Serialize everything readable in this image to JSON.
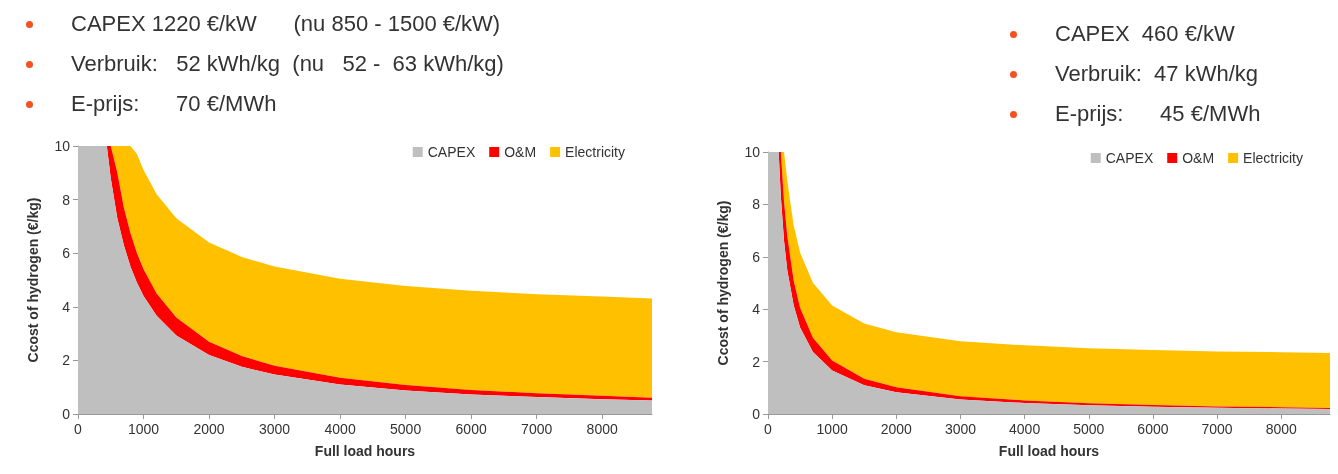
{
  "chart_data": [
    {
      "type": "area",
      "stacked": true,
      "annotations": [
        "CAPEX 1220 €/kW      (nu 850 - 1500 €/kW)",
        "Verbruik:   52 kWh/kg  (nu   52 -  63 kWh/kg)",
        "E-prijs:      70 €/MWh"
      ],
      "xlabel": "Full load hours",
      "ylabel": "Ccost of hydrogen (€/kg)",
      "xlim": [
        0,
        8760
      ],
      "xticks": [
        0,
        1000,
        2000,
        3000,
        4000,
        5000,
        6000,
        7000,
        8000
      ],
      "ylim": [
        0,
        10
      ],
      "yticks": [
        0,
        2,
        4,
        6,
        8,
        10
      ],
      "legend": "top right",
      "x": [
        0,
        440,
        500,
        600,
        700,
        800,
        900,
        1000,
        1200,
        1500,
        2000,
        2500,
        3000,
        4000,
        5000,
        6000,
        7000,
        8000,
        8760
      ],
      "series": [
        {
          "name": "CAPEX",
          "color": "#bfbfbf",
          "values": [
            10,
            10,
            8.8,
            7.3,
            6.3,
            5.5,
            4.9,
            4.4,
            3.67,
            2.93,
            2.2,
            1.76,
            1.47,
            1.1,
            0.88,
            0.73,
            0.63,
            0.55,
            0.5
          ]
        },
        {
          "name": "O&M",
          "color": "#ff0000",
          "values": [
            0,
            0,
            1.2,
            1.7,
            1.4,
            1.25,
            1.1,
            1.0,
            0.83,
            0.67,
            0.5,
            0.4,
            0.33,
            0.25,
            0.2,
            0.17,
            0.14,
            0.13,
            0.11
          ]
        },
        {
          "name": "Electricity",
          "color": "#ffc000",
          "values": [
            0,
            0,
            0,
            1.0,
            2.3,
            3.25,
            3.7,
            3.7,
            3.7,
            3.7,
            3.7,
            3.7,
            3.7,
            3.7,
            3.7,
            3.7,
            3.7,
            3.7,
            3.7
          ]
        }
      ]
    },
    {
      "type": "area",
      "stacked": true,
      "annotations": [
        "CAPEX  460 €/kW",
        "Verbruik:  47 kWh/kg",
        "E-prijs:      45 €/MWh"
      ],
      "xlabel": "Full load hours",
      "ylabel": "Ccost of hydrogen (€/kg)",
      "xlim": [
        0,
        8760
      ],
      "xticks": [
        0,
        1000,
        2000,
        3000,
        4000,
        5000,
        6000,
        7000,
        8000
      ],
      "ylim": [
        0,
        10
      ],
      "yticks": [
        0,
        2,
        4,
        6,
        8,
        10
      ],
      "legend": "top right",
      "x": [
        0,
        166,
        200,
        250,
        300,
        400,
        500,
        700,
        1000,
        1500,
        2000,
        3000,
        4000,
        5000,
        6000,
        7000,
        8000,
        8760
      ],
      "series": [
        {
          "name": "CAPEX",
          "color": "#bfbfbf",
          "values": [
            10,
            10,
            8.3,
            6.6,
            5.5,
            4.15,
            3.3,
            2.37,
            1.66,
            1.1,
            0.83,
            0.55,
            0.42,
            0.33,
            0.28,
            0.24,
            0.21,
            0.19
          ]
        },
        {
          "name": "O&M",
          "color": "#ff0000",
          "values": [
            0,
            0,
            1.7,
            1.5,
            1.3,
            0.95,
            0.76,
            0.54,
            0.38,
            0.25,
            0.19,
            0.13,
            0.1,
            0.08,
            0.06,
            0.05,
            0.05,
            0.04
          ]
        },
        {
          "name": "Electricity",
          "color": "#ffc000",
          "values": [
            0,
            0,
            0,
            1.9,
            2.1,
            2.1,
            2.1,
            2.1,
            2.1,
            2.1,
            2.1,
            2.1,
            2.1,
            2.1,
            2.1,
            2.1,
            2.1,
            2.1
          ]
        }
      ]
    }
  ]
}
